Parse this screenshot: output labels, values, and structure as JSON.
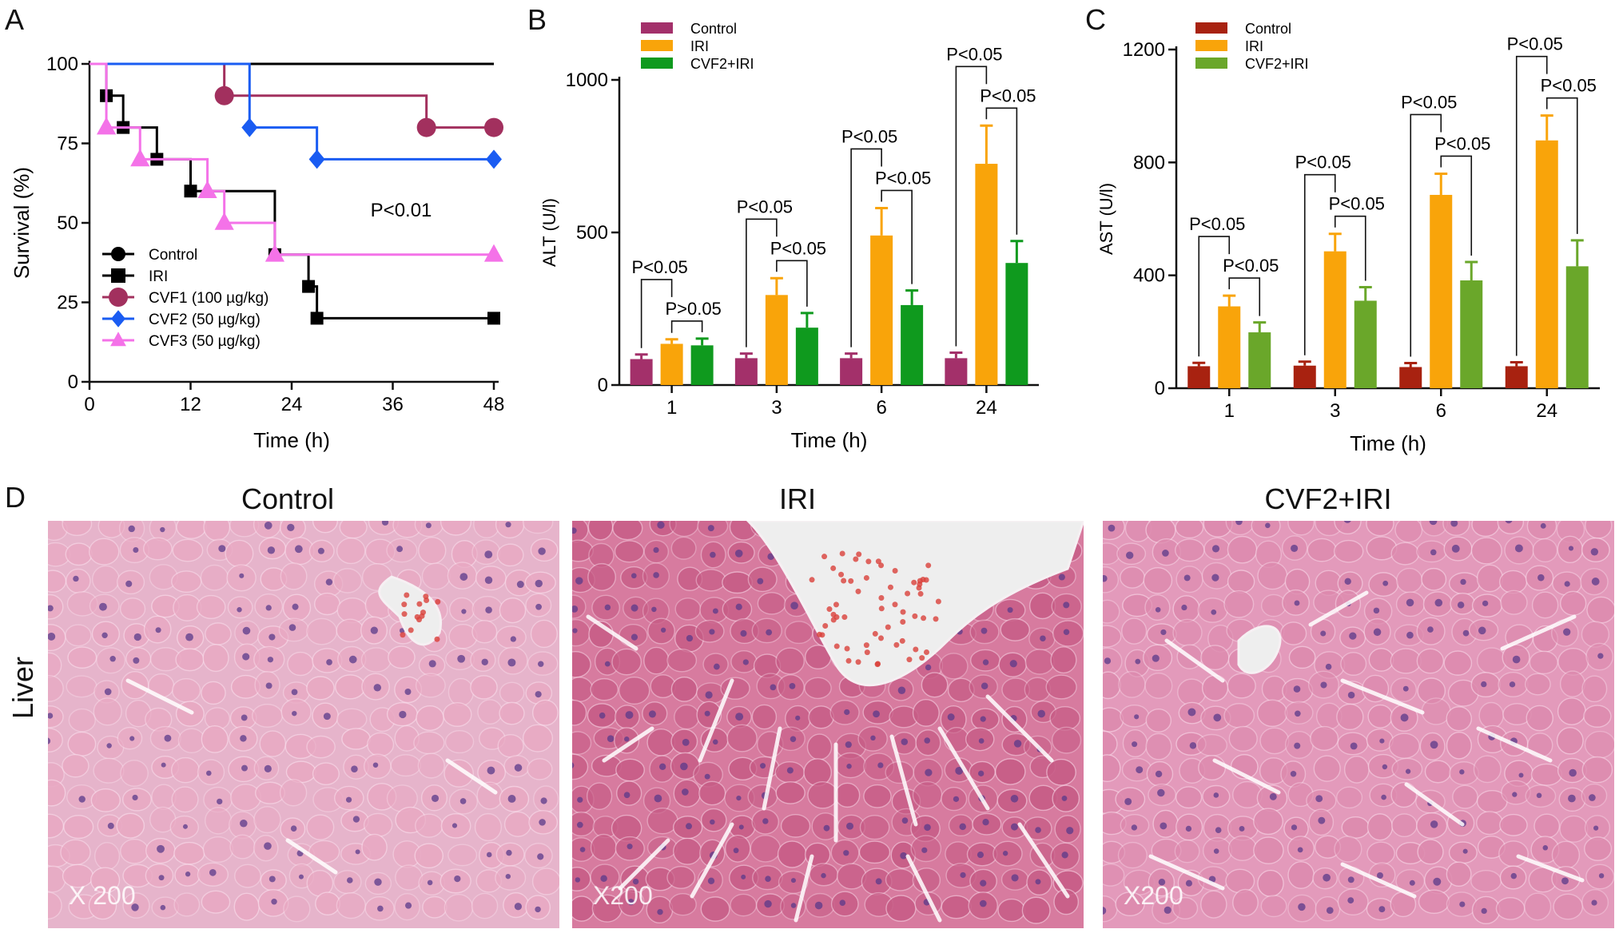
{
  "panel_letters": {
    "a": "A",
    "b": "B",
    "c": "C",
    "d": "D"
  },
  "colors": {
    "control": "#000000",
    "iri": "#000000",
    "cvf1": "#a2305e",
    "cvf2": "#1a5cf2",
    "cvf3": "#f472e8",
    "bar_control_b": "#a3306a",
    "bar_iri": "#f9a40a",
    "bar_cvf2_b": "#0f9a1e",
    "bar_control_c": "#a82210",
    "bar_cvf2_c": "#6aa72a",
    "tissue_pale": "#e6b4cb",
    "tissue_dark": "#c75c86",
    "nucleus": "#5a3a8a"
  },
  "chart_data": [
    {
      "id": "A",
      "type": "line",
      "step": true,
      "xlabel": "Time (h)",
      "ylabel": "Survival (%)",
      "xlim": [
        0,
        48
      ],
      "ylim": [
        0,
        100
      ],
      "xticks": [
        0,
        12,
        24,
        36,
        48
      ],
      "yticks": [
        0,
        25,
        50,
        75,
        100
      ],
      "annotation": "P<0.01",
      "legend_position": "bottom-left",
      "series": [
        {
          "name": "Control",
          "marker": "circle",
          "color_key": "control",
          "x": [
            0,
            48
          ],
          "y": [
            100,
            100
          ],
          "markers_x": [],
          "markers_y": []
        },
        {
          "name": "IRI",
          "marker": "square",
          "color_key": "iri",
          "x": [
            0,
            2,
            4,
            8,
            12,
            22,
            26,
            27,
            48
          ],
          "y": [
            100,
            90,
            80,
            70,
            60,
            40,
            30,
            20,
            20
          ],
          "markers_x": [
            2,
            4,
            8,
            12,
            22,
            26,
            27,
            48
          ],
          "markers_y": [
            90,
            80,
            70,
            60,
            40,
            30,
            20,
            20
          ]
        },
        {
          "name": "CVF1 (100 µg/kg)",
          "marker": "circle",
          "color_key": "cvf1",
          "x": [
            0,
            16,
            40,
            48
          ],
          "y": [
            100,
            90,
            80,
            80
          ],
          "markers_x": [
            16,
            40,
            48
          ],
          "markers_y": [
            90,
            80,
            80
          ]
        },
        {
          "name": "CVF2 (50 µg/kg)",
          "marker": "diamond",
          "color_key": "cvf2",
          "x": [
            0,
            19,
            27,
            48
          ],
          "y": [
            100,
            80,
            70,
            70
          ],
          "markers_x": [
            19,
            27,
            48
          ],
          "markers_y": [
            80,
            70,
            70
          ]
        },
        {
          "name": "CVF3 (50 µg/kg)",
          "marker": "triangle",
          "color_key": "cvf3",
          "x": [
            0,
            2,
            6,
            14,
            16,
            22,
            48
          ],
          "y": [
            100,
            80,
            70,
            60,
            50,
            40,
            40
          ],
          "markers_x": [
            2,
            6,
            14,
            16,
            22,
            48
          ],
          "markers_y": [
            80,
            70,
            60,
            50,
            40,
            40
          ]
        }
      ]
    },
    {
      "id": "B",
      "type": "bar",
      "xlabel": "Time (h)",
      "ylabel": "ALT (U/l)",
      "ylim": [
        0,
        1000
      ],
      "yticks": [
        0,
        500,
        1000
      ],
      "categories": [
        "1",
        "3",
        "6",
        "24"
      ],
      "series": [
        {
          "name": "Control",
          "color_key": "bar_control_b",
          "values": [
            85,
            88,
            88,
            88
          ],
          "errors": [
            15,
            15,
            15,
            18
          ]
        },
        {
          "name": "IRI",
          "color_key": "bar_iri",
          "values": [
            135,
            295,
            490,
            725
          ],
          "errors": [
            15,
            55,
            90,
            125
          ]
        },
        {
          "name": "CVF2+IRI",
          "color_key": "bar_cvf2_b",
          "values": [
            130,
            188,
            262,
            400
          ],
          "errors": [
            22,
            48,
            48,
            72
          ]
        }
      ],
      "comparisons": [
        {
          "cat": 0,
          "outer": "P<0.05",
          "inner": "P>0.05"
        },
        {
          "cat": 1,
          "outer": "P<0.05",
          "inner": "P<0.05"
        },
        {
          "cat": 2,
          "outer": "P<0.05",
          "inner": "P<0.05"
        },
        {
          "cat": 3,
          "outer": "P<0.05",
          "inner": "P<0.05"
        }
      ]
    },
    {
      "id": "C",
      "type": "bar",
      "xlabel": "Time (h)",
      "ylabel": "AST (U/l)",
      "ylim": [
        0,
        1200
      ],
      "yticks": [
        0,
        400,
        800,
        1200
      ],
      "categories": [
        "1",
        "3",
        "6",
        "24"
      ],
      "series": [
        {
          "name": "Control",
          "color_key": "bar_control_c",
          "values": [
            78,
            80,
            75,
            78
          ],
          "errors": [
            12,
            14,
            14,
            14
          ]
        },
        {
          "name": "IRI",
          "color_key": "bar_iri",
          "values": [
            290,
            485,
            685,
            878
          ],
          "errors": [
            38,
            62,
            75,
            88
          ]
        },
        {
          "name": "CVF2+IRI",
          "color_key": "bar_cvf2_c",
          "values": [
            198,
            310,
            382,
            432
          ],
          "errors": [
            35,
            48,
            65,
            92
          ]
        }
      ],
      "comparisons": [
        {
          "cat": 0,
          "outer": "P<0.05",
          "inner": "P<0.05"
        },
        {
          "cat": 1,
          "outer": "P<0.05",
          "inner": "P<0.05"
        },
        {
          "cat": 2,
          "outer": "P<0.05",
          "inner": "P<0.05"
        },
        {
          "cat": 3,
          "outer": "P<0.05",
          "inner": "P<0.05"
        }
      ]
    }
  ],
  "histology": {
    "row_label": "Liver",
    "panels": [
      {
        "title": "Control",
        "magnification": "X 200"
      },
      {
        "title": "IRI",
        "magnification": "X200"
      },
      {
        "title": "CVF2+IRI",
        "magnification": "X200"
      }
    ]
  }
}
